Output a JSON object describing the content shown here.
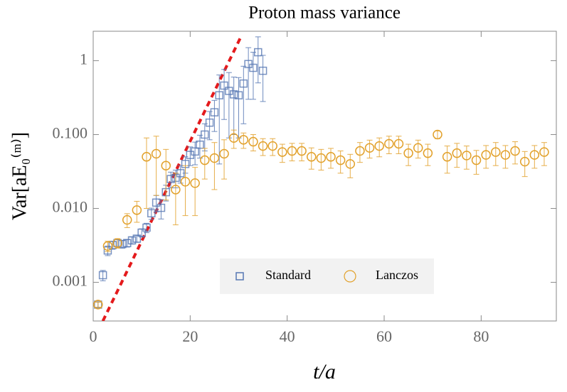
{
  "chart_data": {
    "type": "scatter",
    "title": "Proton mass variance",
    "x_label": "t/a",
    "y_label": "Var[aE₀⁽ᵐ⁾]",
    "log_y": true,
    "legend": "lower center",
    "xlim": [
      0,
      95.5
    ],
    "xticks": [
      0,
      20,
      40,
      60,
      80
    ],
    "ylim": [
      0.0003,
      2.5
    ],
    "yticks": [
      {
        "value": 0.001,
        "label": "0.001"
      },
      {
        "value": 0.01,
        "label": "0.010"
      },
      {
        "value": 0.1,
        "label": "0.100"
      },
      1
    ],
    "fit": {
      "color": "#e41a1c",
      "x": [
        2,
        30.6
      ],
      "values": [
        0.0003,
        2.2
      ]
    },
    "series": [
      {
        "name": "Standard",
        "color": "#5677b3",
        "marker": "square",
        "x": [
          1,
          2,
          3,
          4,
          5,
          6,
          7,
          8,
          9,
          10,
          11,
          12,
          13,
          14,
          15,
          16,
          17,
          18,
          19,
          20,
          21,
          22,
          23,
          24,
          25,
          26,
          27,
          28,
          29,
          30,
          31,
          32,
          33,
          34,
          35
        ],
        "values": [
          0.0005,
          0.00125,
          0.0027,
          0.0032,
          0.0034,
          0.0033,
          0.0034,
          0.0037,
          0.0039,
          0.0047,
          0.0055,
          0.0086,
          0.012,
          0.0102,
          0.0166,
          0.025,
          0.026,
          0.03,
          0.04,
          0.053,
          0.059,
          0.073,
          0.1,
          0.145,
          0.2,
          0.34,
          0.46,
          0.39,
          0.35,
          0.34,
          0.49,
          0.9,
          0.8,
          1.3,
          0.73
        ],
        "errors": [
          4e-05,
          0.0002,
          0.0004,
          0.0004,
          0.0004,
          0.0004,
          0.0004,
          0.0004,
          0.0004,
          0.0006,
          0.0008,
          0.0015,
          0.003,
          0.003,
          0.004,
          0.006,
          0.007,
          0.008,
          0.01,
          0.015,
          0.02,
          0.025,
          0.04,
          0.06,
          0.09,
          0.3,
          0.3,
          0.3,
          0.25,
          0.25,
          0.35,
          0.6,
          0.5,
          0.8,
          0.45
        ]
      },
      {
        "name": "Lanczos",
        "color": "#e2a12b",
        "marker": "circle",
        "x": [
          1,
          3,
          5,
          7,
          9,
          11,
          13,
          15,
          17,
          19,
          21,
          23,
          25,
          27,
          29,
          31,
          33,
          35,
          37,
          39,
          41,
          43,
          45,
          47,
          49,
          51,
          53,
          55,
          57,
          59,
          61,
          63,
          65,
          67,
          69,
          71,
          73,
          75,
          77,
          79,
          81,
          83,
          85,
          87,
          89,
          91,
          93
        ],
        "values": [
          0.0005,
          0.0031,
          0.0034,
          0.007,
          0.0095,
          0.05,
          0.055,
          0.038,
          0.018,
          0.023,
          0.022,
          0.045,
          0.048,
          0.055,
          0.09,
          0.085,
          0.08,
          0.07,
          0.07,
          0.058,
          0.06,
          0.06,
          0.05,
          0.048,
          0.05,
          0.045,
          0.04,
          0.06,
          0.066,
          0.07,
          0.075,
          0.075,
          0.056,
          0.066,
          0.056,
          0.1,
          0.05,
          0.056,
          0.052,
          0.045,
          0.053,
          0.058,
          0.053,
          0.06,
          0.043,
          0.053,
          0.058
        ],
        "errors": [
          4e-05,
          0.0005,
          0.0005,
          0.0015,
          0.003,
          0.04,
          0.04,
          0.025,
          0.012,
          0.015,
          0.014,
          0.02,
          0.03,
          0.03,
          0.025,
          0.02,
          0.02,
          0.018,
          0.018,
          0.016,
          0.016,
          0.016,
          0.016,
          0.015,
          0.015,
          0.015,
          0.014,
          0.018,
          0.018,
          0.02,
          0.02,
          0.02,
          0.018,
          0.018,
          0.018,
          0.012,
          0.02,
          0.02,
          0.018,
          0.016,
          0.018,
          0.02,
          0.018,
          0.02,
          0.016,
          0.018,
          0.02
        ]
      }
    ]
  }
}
